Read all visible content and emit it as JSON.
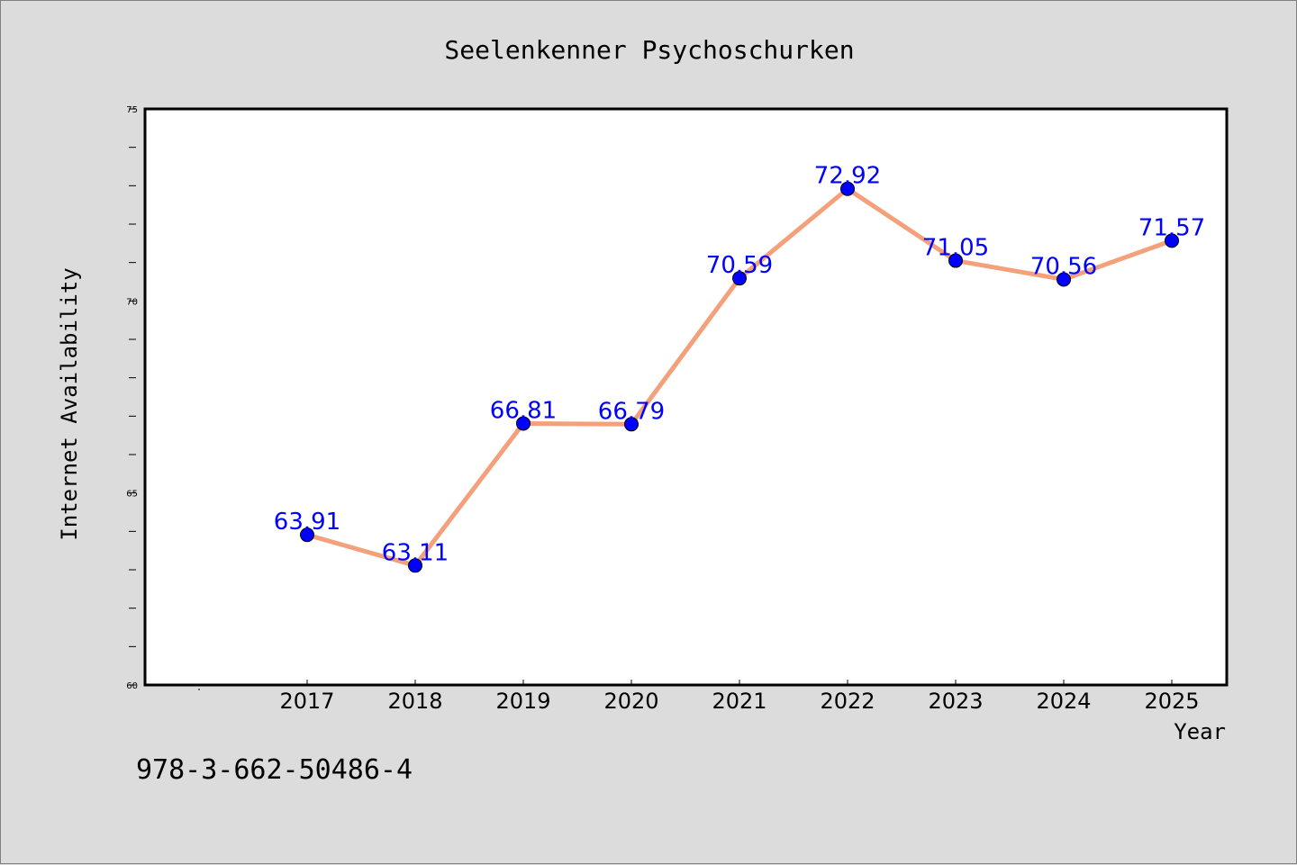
{
  "chart_data": {
    "type": "line",
    "title": "Seelenkenner Psychoschurken",
    "xlabel": "Year",
    "ylabel": "Internet Availability",
    "categories": [
      "2017",
      "2018",
      "2019",
      "2020",
      "2021",
      "2022",
      "2023",
      "2024",
      "2025"
    ],
    "series": [
      {
        "values": [
          63.91,
          63.11,
          66.81,
          66.79,
          70.59,
          72.92,
          71.05,
          70.56,
          71.57
        ],
        "data_labels": [
          "63.91",
          "63.11",
          "66.81",
          "66.79",
          "70.59",
          "72.92",
          "71.05",
          "70.56",
          "71.57"
        ],
        "line_color": "#f4a07a",
        "marker_color": "#0000ff"
      }
    ],
    "ylim": [
      60,
      75
    ],
    "yticks": [
      "60",
      "65",
      "70",
      "75"
    ],
    "grid": false,
    "legend": "none"
  },
  "footnote": "978-3-662-50486-4",
  "colors": {
    "background": "#dcdcdc",
    "plot_background": "#ffffff",
    "line": "#f4a07a",
    "marker": "#0000ff",
    "data_label": "#0000ff"
  }
}
